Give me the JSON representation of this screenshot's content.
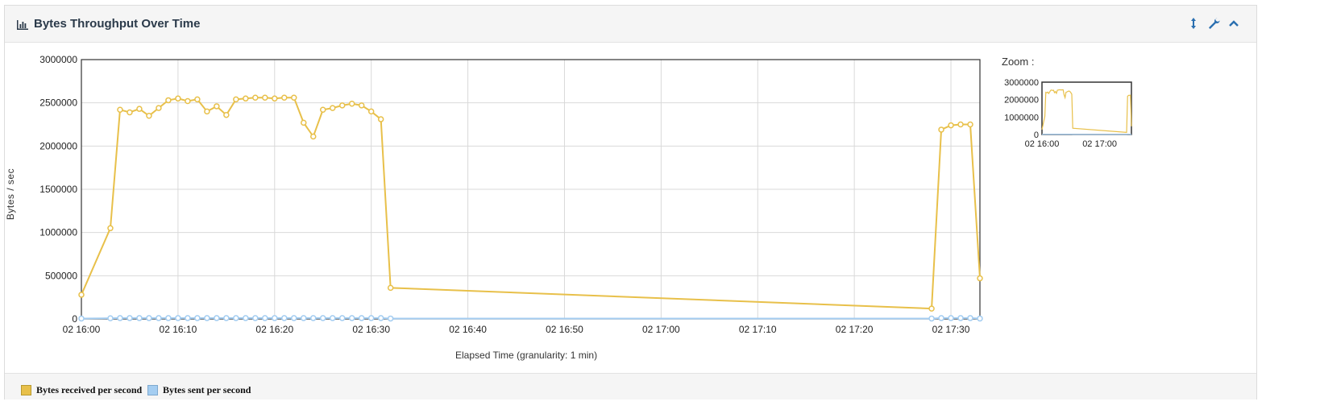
{
  "panel": {
    "title": "Bytes Throughput Over Time",
    "icons": [
      "bar-chart-icon",
      "resize-vertical-icon",
      "wrench-icon",
      "chevron-up-icon"
    ]
  },
  "zoom": {
    "label": "Zoom :"
  },
  "colors": {
    "received": "#e8c04a",
    "sent": "#a4cdf1",
    "grid": "#d9d9d9"
  },
  "chart_data": {
    "type": "line",
    "xlabel": "Elapsed Time (granularity: 1 min)",
    "ylabel": "Bytes / sec",
    "ylim": [
      0,
      3000000
    ],
    "yticks": [
      0,
      500000,
      1000000,
      1500000,
      2000000,
      2500000,
      3000000
    ],
    "ytick_labels": [
      "0",
      "500000",
      "1000000",
      "1500000",
      "2000000",
      "2500000",
      "3000000"
    ],
    "xlim": [
      "02 16:00",
      "02 17:33"
    ],
    "xticks": [
      "02 16:00",
      "02 16:10",
      "02 16:20",
      "02 16:30",
      "02 16:40",
      "02 16:50",
      "02 17:00",
      "02 17:10",
      "02 17:20",
      "02 17:30"
    ],
    "grid": true,
    "legend_position": "bottom-left",
    "series": [
      {
        "name": "Bytes received per second",
        "x": [
          "02 16:00",
          "02 16:03",
          "02 16:04",
          "02 16:05",
          "02 16:06",
          "02 16:07",
          "02 16:08",
          "02 16:09",
          "02 16:10",
          "02 16:11",
          "02 16:12",
          "02 16:13",
          "02 16:14",
          "02 16:15",
          "02 16:16",
          "02 16:17",
          "02 16:18",
          "02 16:19",
          "02 16:20",
          "02 16:21",
          "02 16:22",
          "02 16:23",
          "02 16:24",
          "02 16:25",
          "02 16:26",
          "02 16:27",
          "02 16:28",
          "02 16:29",
          "02 16:30",
          "02 16:31",
          "02 16:32",
          "02 17:28",
          "02 17:29",
          "02 17:30",
          "02 17:31",
          "02 17:32",
          "02 17:33"
        ],
        "values": [
          280000,
          1050000,
          2420000,
          2390000,
          2430000,
          2350000,
          2440000,
          2530000,
          2550000,
          2520000,
          2540000,
          2400000,
          2460000,
          2360000,
          2540000,
          2550000,
          2560000,
          2560000,
          2550000,
          2560000,
          2560000,
          2270000,
          2110000,
          2420000,
          2440000,
          2470000,
          2490000,
          2470000,
          2400000,
          2310000,
          360000,
          120000,
          2190000,
          2240000,
          2250000,
          2250000,
          470000
        ]
      },
      {
        "name": "Bytes sent per second",
        "x": [
          "02 16:00",
          "02 16:03",
          "02 16:04",
          "02 16:05",
          "02 16:06",
          "02 16:07",
          "02 16:08",
          "02 16:09",
          "02 16:10",
          "02 16:11",
          "02 16:12",
          "02 16:13",
          "02 16:14",
          "02 16:15",
          "02 16:16",
          "02 16:17",
          "02 16:18",
          "02 16:19",
          "02 16:20",
          "02 16:21",
          "02 16:22",
          "02 16:23",
          "02 16:24",
          "02 16:25",
          "02 16:26",
          "02 16:27",
          "02 16:28",
          "02 16:29",
          "02 16:30",
          "02 16:31",
          "02 16:32",
          "02 17:28",
          "02 17:29",
          "02 17:30",
          "02 17:31",
          "02 17:32",
          "02 17:33"
        ],
        "values": [
          5000,
          8000,
          10000,
          10000,
          10000,
          10000,
          10000,
          10000,
          10000,
          10000,
          10000,
          10000,
          10000,
          10000,
          10000,
          10000,
          10000,
          10000,
          10000,
          10000,
          10000,
          10000,
          10000,
          10000,
          10000,
          10000,
          10000,
          10000,
          10000,
          10000,
          5000,
          5000,
          10000,
          10000,
          10000,
          10000,
          5000
        ]
      }
    ],
    "zoom_overview": {
      "ylim": [
        0,
        3000000
      ],
      "yticks": [
        0,
        1000000,
        2000000,
        3000000
      ],
      "ytick_labels": [
        "0",
        "1000000",
        "2000000",
        "3000000"
      ],
      "xticks": [
        "02 16:00",
        "02 17:00"
      ]
    }
  }
}
